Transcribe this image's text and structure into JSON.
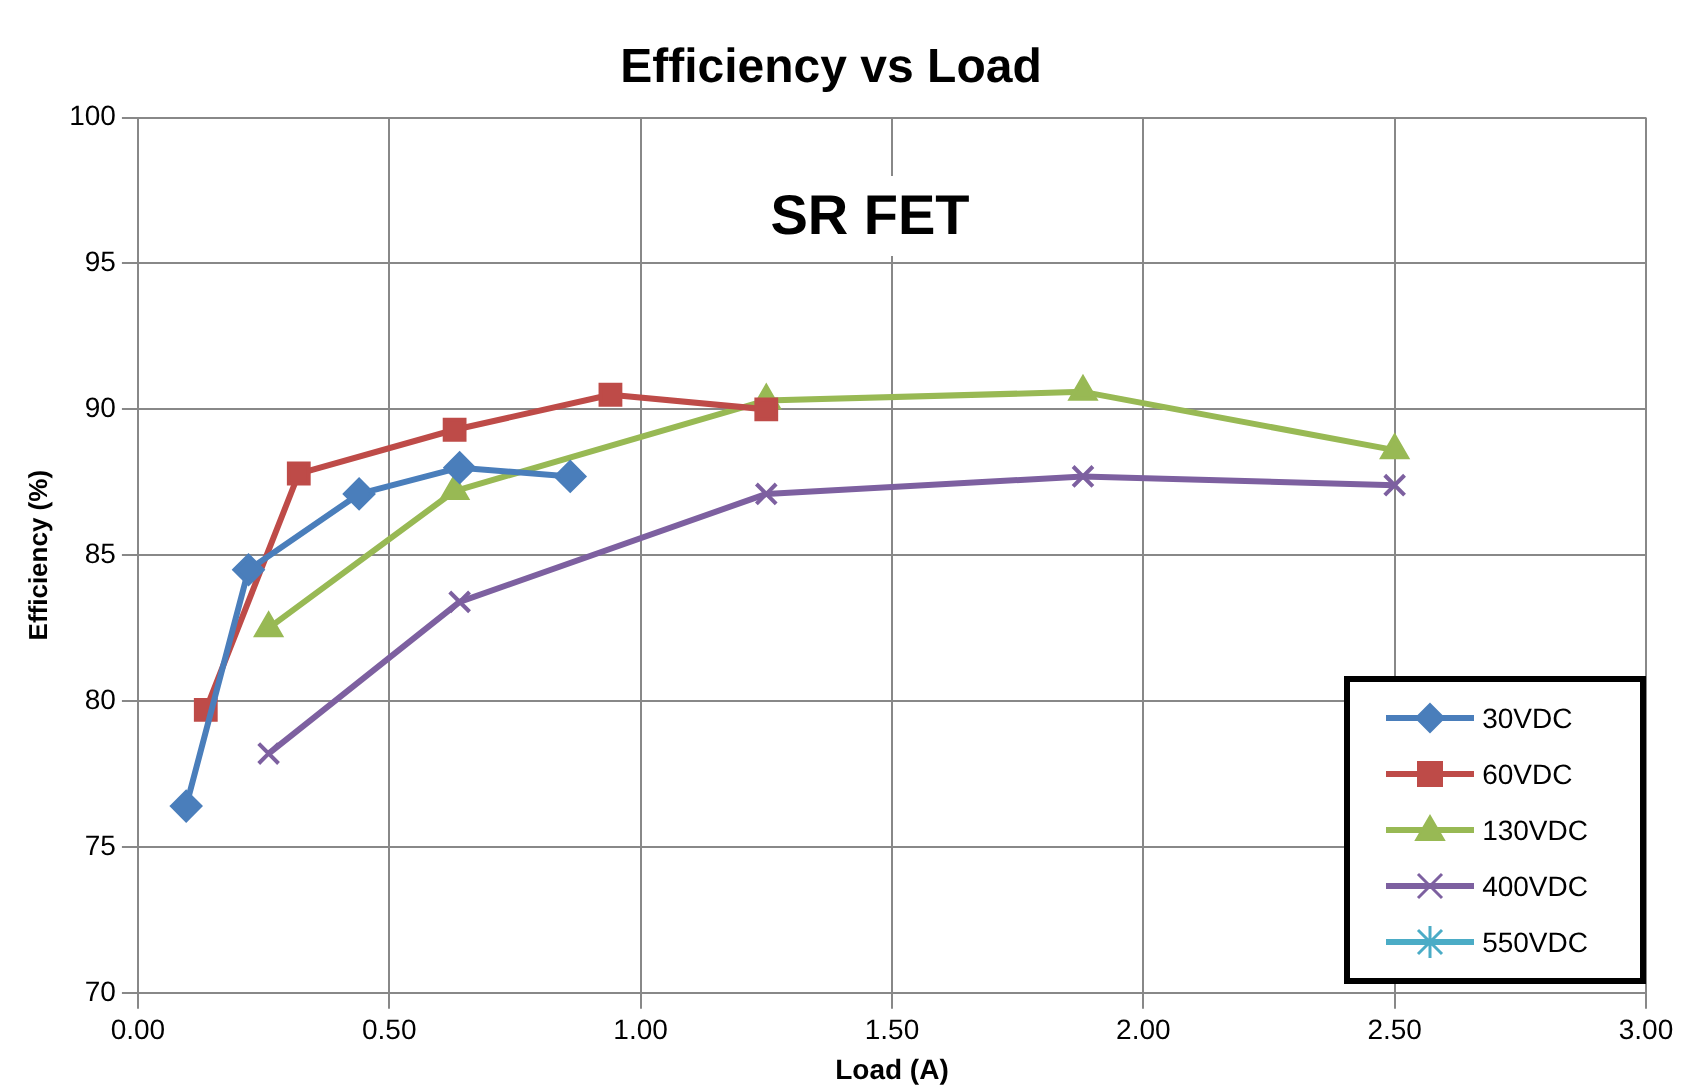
{
  "chart_data": {
    "type": "line",
    "title": "Efficiency vs Load",
    "xlabel": "Load (A)",
    "ylabel": "Efficiency (%)",
    "annotations": [
      "SR FET"
    ],
    "xlim": [
      0,
      3
    ],
    "xticks": [
      {
        "value": 0,
        "label": "0.00"
      },
      {
        "value": 0.5,
        "label": "0.50"
      },
      {
        "value": 1,
        "label": "1.00"
      },
      {
        "value": 1.5,
        "label": "1.50"
      },
      {
        "value": 2,
        "label": "2.00"
      },
      {
        "value": 2.5,
        "label": "2.50"
      },
      {
        "value": 3,
        "label": "3.00"
      }
    ],
    "ylim": [
      70,
      100
    ],
    "yticks": [
      70,
      75,
      80,
      85,
      90,
      95,
      100
    ],
    "grid": true,
    "legend": "bottom right",
    "series": [
      {
        "name": "30VDC",
        "color": "#4a7ebb",
        "marker": "diamond",
        "x": [
          0.096,
          0.22,
          0.44,
          0.64,
          0.86
        ],
        "values": [
          76.4,
          84.5,
          87.1,
          88.0,
          87.7
        ]
      },
      {
        "name": "60VDC",
        "color": "#be4b48",
        "marker": "square",
        "x": [
          0.135,
          0.32,
          0.63,
          0.94,
          1.25
        ],
        "values": [
          79.7,
          87.8,
          89.3,
          90.5,
          90.0
        ]
      },
      {
        "name": "130VDC",
        "color": "#98b954",
        "marker": "triangle",
        "x": [
          0.26,
          0.63,
          1.25,
          1.88,
          2.5
        ],
        "values": [
          82.5,
          87.2,
          90.3,
          90.6,
          88.6
        ]
      },
      {
        "name": "400VDC",
        "color": "#7d60a0",
        "marker": "cross",
        "x": [
          0.26,
          0.64,
          1.25,
          1.88,
          2.5
        ],
        "values": [
          78.2,
          83.4,
          87.1,
          87.7,
          87.4
        ]
      },
      {
        "name": "550VDC",
        "color": "#4bacc6",
        "marker": "star"
      }
    ]
  }
}
